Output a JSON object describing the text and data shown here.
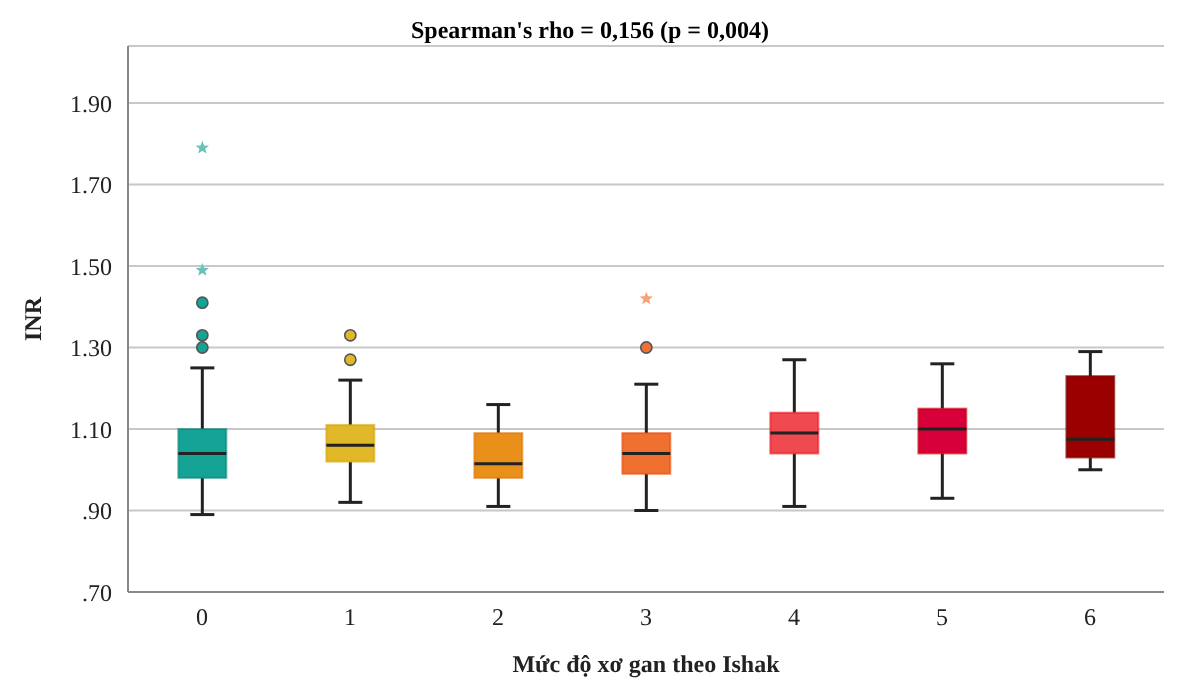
{
  "chart_data": {
    "type": "box",
    "title": "Spearman's rho = 0,156 (p = 0,004)",
    "xlabel": "Mức độ xơ gan theo Ishak",
    "ylabel": "INR",
    "categories": [
      "0",
      "1",
      "2",
      "3",
      "4",
      "5",
      "6"
    ],
    "colors": [
      "#14a394",
      "#e0b828",
      "#e8901a",
      "#f07030",
      "#ee4a50",
      "#d8003a",
      "#9a0000"
    ],
    "boxes": [
      {
        "low": 0.89,
        "q1": 0.98,
        "median": 1.04,
        "q3": 1.1,
        "high": 1.25,
        "outliers": [
          1.3,
          1.33,
          1.41,
          1.49,
          1.79
        ]
      },
      {
        "low": 0.92,
        "q1": 1.02,
        "median": 1.06,
        "q3": 1.11,
        "high": 1.22,
        "outliers": [
          1.27,
          1.33
        ]
      },
      {
        "low": 0.91,
        "q1": 0.98,
        "median": 1.015,
        "q3": 1.09,
        "high": 1.16
      },
      {
        "low": 0.9,
        "q1": 0.99,
        "median": 1.04,
        "q3": 1.09,
        "high": 1.21,
        "outliers": [
          1.3,
          1.42
        ]
      },
      {
        "low": 0.91,
        "q1": 1.04,
        "median": 1.09,
        "q3": 1.14,
        "high": 1.27
      },
      {
        "low": 0.93,
        "q1": 1.04,
        "median": 1.1,
        "q3": 1.15,
        "high": 1.26
      },
      {
        "low": 1.0,
        "q1": 1.03,
        "median": 1.075,
        "q3": 1.23,
        "high": 1.29
      }
    ],
    "ylim": [
      0.7,
      2.04
    ],
    "yticks": [
      {
        "value": 0.7,
        "label": ".70"
      },
      {
        "value": 0.9,
        "label": ".90"
      },
      {
        "value": 1.1,
        "label": "1.10"
      },
      {
        "value": 1.3,
        "label": "1.30"
      },
      {
        "value": 1.5,
        "label": "1.50"
      },
      {
        "value": 1.7,
        "label": "1.70"
      },
      {
        "value": 1.9,
        "label": "1.90"
      }
    ],
    "grid": "y"
  }
}
